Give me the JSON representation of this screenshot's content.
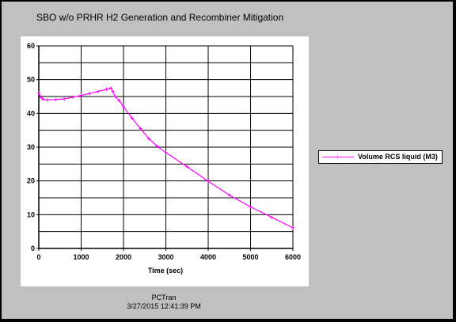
{
  "chart_data": {
    "type": "line",
    "title": "SBO w/o PRHR H2 Generation and Recombiner Mitigation",
    "xlabel": "Time (sec)",
    "ylabel": "",
    "xlim": [
      0,
      6000
    ],
    "ylim": [
      0,
      60
    ],
    "xticks": [
      0,
      1000,
      2000,
      3000,
      4000,
      5000,
      6000
    ],
    "yticks": [
      0,
      10,
      20,
      30,
      40,
      50,
      60
    ],
    "grid": true,
    "legend_position": "right",
    "series": [
      {
        "name": "Volume RCS liquid (M3)",
        "color": "#ff00ff",
        "x": [
          0,
          50,
          100,
          200,
          400,
          600,
          800,
          1000,
          1200,
          1400,
          1600,
          1700,
          1750,
          1800,
          1900,
          2000,
          2200,
          2400,
          2600,
          2800,
          3000,
          3500,
          4000,
          4500,
          5000,
          5500,
          6000
        ],
        "y": [
          46,
          44.8,
          44.2,
          44.0,
          44.1,
          44.3,
          44.8,
          45.3,
          45.9,
          46.5,
          47.1,
          47.5,
          46.5,
          45.0,
          43.8,
          42.0,
          38.6,
          35.5,
          32.5,
          30.2,
          28.4,
          24.2,
          19.9,
          15.8,
          12.3,
          9.2,
          6.1
        ]
      }
    ]
  },
  "footer": {
    "app": "PCTran",
    "timestamp": "3/27/2015 12:41:39 PM"
  }
}
